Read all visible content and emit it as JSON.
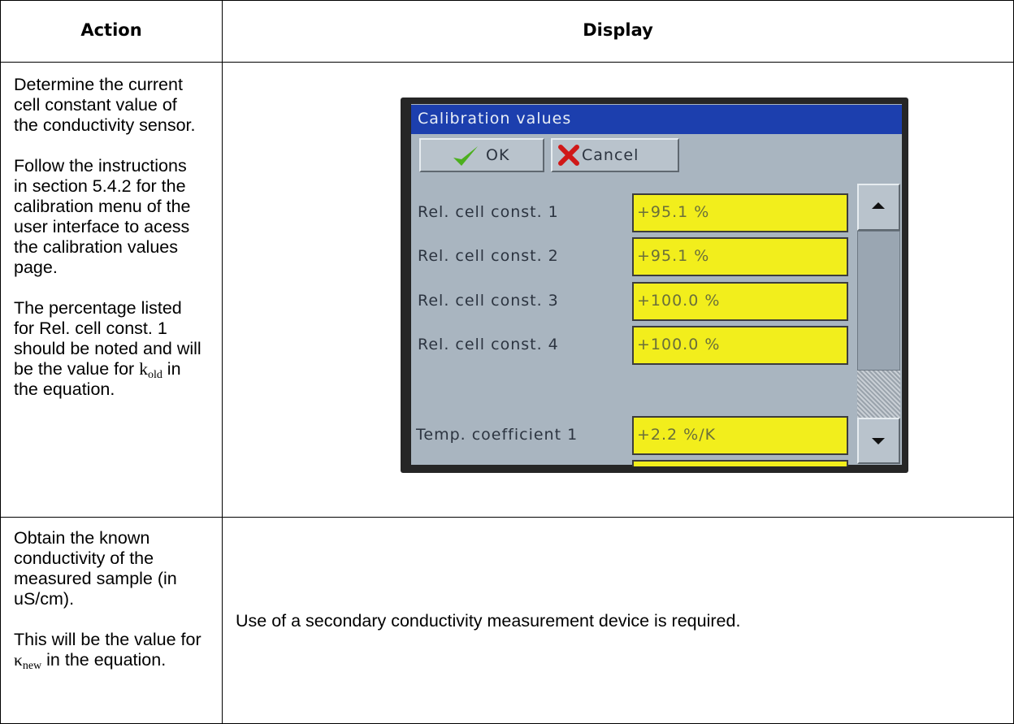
{
  "table": {
    "header": [
      "Action",
      "Display"
    ],
    "rows": [
      {
        "action": {
          "paragraphs": [
            [
              "Determine the current",
              "cell constant value of",
              "the conductivity sensor."
            ],
            [
              "Follow the instructions",
              "in section 5.4.2 for the",
              "calibration menu of the",
              "user interface to acess",
              "the calibration values",
              "page."
            ],
            [
              "The percentage listed",
              "for Rel. cell const. 1",
              "should be noted and will",
              {
                "text": "be the value for ",
                "symbol": "k",
                "sub": "old",
                "after": " in"
              },
              "the equation."
            ]
          ]
        },
        "display": {
          "screen": {
            "title": "Calibration values",
            "buttons": [
              "OK",
              "Cancel"
            ],
            "fields": [
              {
                "label": "Rel. cell const. 1",
                "value": "+95.1 %"
              },
              {
                "label": "Rel. cell const. 2",
                "value": "+95.1 %"
              },
              {
                "label": "Rel. cell const. 3",
                "value": "+100.0 %"
              },
              {
                "label": "Rel. cell const. 4",
                "value": "+100.0 %"
              },
              {
                "label": "Temp. coefficient 1",
                "value": "+2.2 %/K"
              }
            ]
          }
        }
      },
      {
        "action": {
          "paragraphs": [
            [
              "Obtain the known",
              "conductivity of the",
              "measured sample (in",
              "uS/cm)."
            ],
            [
              "This will be the value for",
              {
                "symbol": "κ",
                "sub": "new",
                "after": " in the equation."
              }
            ]
          ]
        },
        "display": {
          "text": "Use of a secondary conductivity measurement device is required."
        }
      }
    ]
  }
}
